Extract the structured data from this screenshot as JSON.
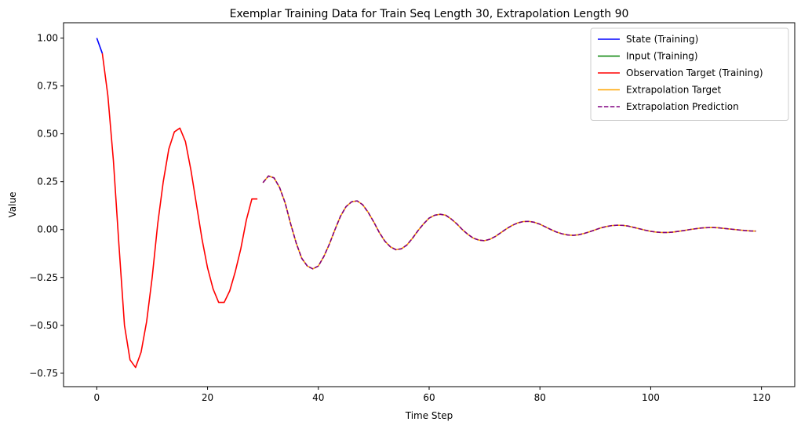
{
  "chart_data": {
    "type": "line",
    "title": "Exemplar Training Data for Train Seq Length 30, Extrapolation Length 90",
    "xlabel": "Time Step",
    "ylabel": "Value",
    "xlim": [
      -6,
      126
    ],
    "ylim": [
      -0.82,
      1.08
    ],
    "xticks": [
      0,
      20,
      40,
      60,
      80,
      100,
      120
    ],
    "yticks": [
      -0.75,
      -0.5,
      -0.25,
      0.0,
      0.25,
      0.5,
      0.75,
      1.0
    ],
    "ytick_labels": [
      "−0.75",
      "−0.50",
      "−0.25",
      "0.00",
      "0.25",
      "0.50",
      "0.75",
      "1.00"
    ],
    "grid": false,
    "legend_position": "top-right",
    "series": [
      {
        "name": "State (Training)",
        "color": "#0000ff",
        "dash": "solid",
        "x": [
          0,
          1
        ],
        "y": [
          1.0,
          0.92
        ]
      },
      {
        "name": "Input (Training)",
        "color": "#008000",
        "dash": "solid",
        "x": [],
        "y": []
      },
      {
        "name": "Observation Target (Training)",
        "color": "#ff0000",
        "dash": "solid",
        "x": [
          1,
          2,
          3,
          4,
          5,
          6,
          7,
          8,
          9,
          10,
          11,
          12,
          13,
          14,
          15,
          16,
          17,
          18,
          19,
          20,
          21,
          22,
          23,
          24,
          25,
          26,
          27,
          28,
          29
        ],
        "y": [
          0.92,
          0.7,
          0.36,
          -0.08,
          -0.5,
          -0.68,
          -0.72,
          -0.64,
          -0.48,
          -0.25,
          0.03,
          0.25,
          0.42,
          0.51,
          0.53,
          0.46,
          0.31,
          0.13,
          -0.05,
          -0.2,
          -0.31,
          -0.38,
          -0.38,
          -0.32,
          -0.22,
          -0.1,
          0.05,
          0.16,
          0.16
        ]
      },
      {
        "name": "Extrapolation Target",
        "color": "#ffa500",
        "dash": "solid",
        "x": [
          30,
          31,
          32,
          33,
          34,
          35,
          36,
          37,
          38,
          39,
          40,
          41,
          42,
          43,
          44,
          45,
          46,
          47,
          48,
          49,
          50,
          51,
          52,
          53,
          54,
          55,
          56,
          57,
          58,
          59,
          60,
          61,
          62,
          63,
          64,
          65,
          66,
          67,
          68,
          69,
          70,
          71,
          72,
          73,
          74,
          75,
          76,
          77,
          78,
          79,
          80,
          81,
          82,
          83,
          84,
          85,
          86,
          87,
          88,
          89,
          90,
          91,
          92,
          93,
          94,
          95,
          96,
          97,
          98,
          99,
          100,
          101,
          102,
          103,
          104,
          105,
          106,
          107,
          108,
          109,
          110,
          111,
          112,
          113,
          114,
          115,
          116,
          117,
          118,
          119
        ],
        "y": [
          0.245,
          0.28,
          0.27,
          0.22,
          0.14,
          0.03,
          -0.07,
          -0.15,
          -0.19,
          -0.205,
          -0.19,
          -0.14,
          -0.075,
          0.0,
          0.07,
          0.12,
          0.145,
          0.15,
          0.13,
          0.09,
          0.04,
          -0.015,
          -0.06,
          -0.09,
          -0.105,
          -0.1,
          -0.08,
          -0.045,
          -0.005,
          0.03,
          0.06,
          0.075,
          0.08,
          0.075,
          0.055,
          0.03,
          0.0,
          -0.025,
          -0.045,
          -0.055,
          -0.058,
          -0.05,
          -0.035,
          -0.015,
          0.005,
          0.022,
          0.035,
          0.042,
          0.043,
          0.038,
          0.028,
          0.014,
          0.0,
          -0.013,
          -0.022,
          -0.028,
          -0.03,
          -0.027,
          -0.02,
          -0.011,
          -0.001,
          0.009,
          0.016,
          0.021,
          0.023,
          0.022,
          0.018,
          0.011,
          0.004,
          -0.003,
          -0.009,
          -0.013,
          -0.015,
          -0.015,
          -0.013,
          -0.009,
          -0.005,
          0.0,
          0.004,
          0.008,
          0.01,
          0.011,
          0.01,
          0.007,
          0.004,
          0.001,
          -0.002,
          -0.005,
          -0.007,
          -0.008
        ]
      },
      {
        "name": "Extrapolation Prediction",
        "color": "#800080",
        "dash": "dashed",
        "x": [
          30,
          31,
          32,
          33,
          34,
          35,
          36,
          37,
          38,
          39,
          40,
          41,
          42,
          43,
          44,
          45,
          46,
          47,
          48,
          49,
          50,
          51,
          52,
          53,
          54,
          55,
          56,
          57,
          58,
          59,
          60,
          61,
          62,
          63,
          64,
          65,
          66,
          67,
          68,
          69,
          70,
          71,
          72,
          73,
          74,
          75,
          76,
          77,
          78,
          79,
          80,
          81,
          82,
          83,
          84,
          85,
          86,
          87,
          88,
          89,
          90,
          91,
          92,
          93,
          94,
          95,
          96,
          97,
          98,
          99,
          100,
          101,
          102,
          103,
          104,
          105,
          106,
          107,
          108,
          109,
          110,
          111,
          112,
          113,
          114,
          115,
          116,
          117,
          118,
          119
        ],
        "y": [
          0.245,
          0.28,
          0.27,
          0.22,
          0.14,
          0.03,
          -0.07,
          -0.15,
          -0.19,
          -0.205,
          -0.19,
          -0.14,
          -0.075,
          0.0,
          0.07,
          0.12,
          0.145,
          0.15,
          0.13,
          0.09,
          0.04,
          -0.015,
          -0.06,
          -0.09,
          -0.105,
          -0.1,
          -0.08,
          -0.045,
          -0.005,
          0.03,
          0.06,
          0.075,
          0.08,
          0.075,
          0.055,
          0.03,
          0.0,
          -0.025,
          -0.045,
          -0.055,
          -0.058,
          -0.05,
          -0.035,
          -0.015,
          0.005,
          0.022,
          0.035,
          0.042,
          0.043,
          0.038,
          0.028,
          0.014,
          0.0,
          -0.013,
          -0.022,
          -0.028,
          -0.03,
          -0.027,
          -0.02,
          -0.011,
          -0.001,
          0.009,
          0.016,
          0.021,
          0.023,
          0.022,
          0.018,
          0.011,
          0.004,
          -0.003,
          -0.009,
          -0.013,
          -0.015,
          -0.015,
          -0.013,
          -0.009,
          -0.005,
          0.0,
          0.004,
          0.008,
          0.01,
          0.011,
          0.01,
          0.007,
          0.004,
          0.001,
          -0.002,
          -0.005,
          -0.007,
          -0.008
        ]
      }
    ]
  }
}
